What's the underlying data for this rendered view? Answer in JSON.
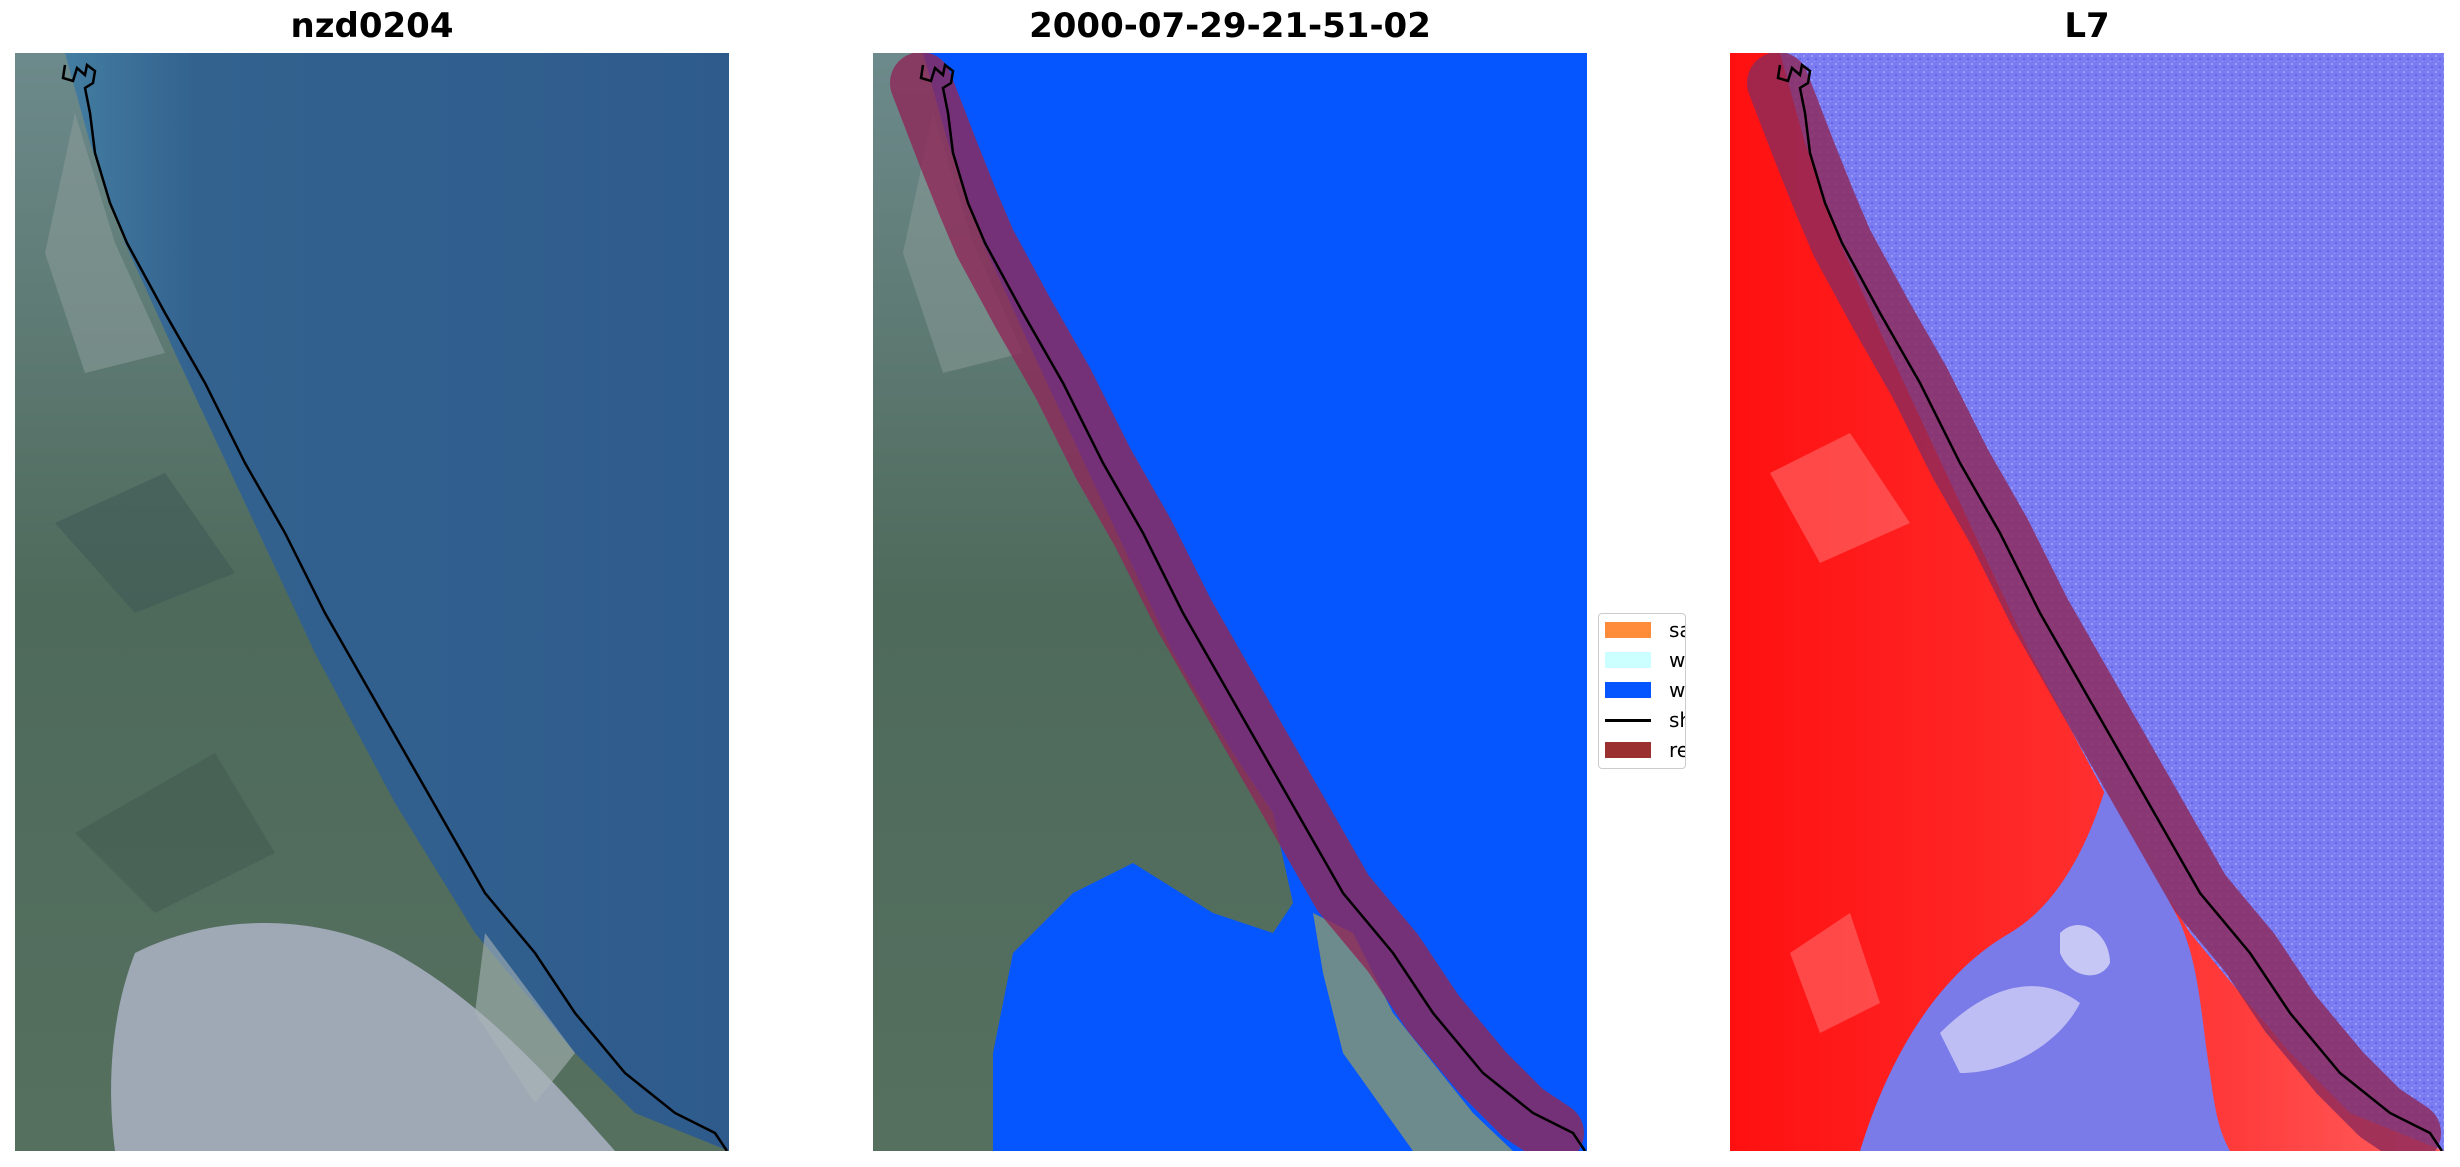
{
  "panels": [
    {
      "title": "nzd0204",
      "kind": "rgb"
    },
    {
      "title": "2000-07-29-21-51-02",
      "kind": "classified"
    },
    {
      "title": "L7",
      "kind": "index"
    }
  ],
  "legend": {
    "items": [
      {
        "label": "sand",
        "color": "#ff8c3a",
        "type": "patch"
      },
      {
        "label": "whitew",
        "color": "#ccffff",
        "type": "patch"
      },
      {
        "label": "water",
        "color": "#0556ff",
        "type": "patch"
      },
      {
        "label": "shorel",
        "color": "#000000",
        "type": "line"
      },
      {
        "label": "referen",
        "color": "#9b3030",
        "type": "patch"
      }
    ]
  },
  "colors": {
    "ocean": "#2f5f91",
    "land_green": "#4f6f5e",
    "estuary": "#9aa5b4",
    "water_class": "#0556ff",
    "reference_buffer": "#8e2a59",
    "index_land": "#ff1a1a",
    "index_water": "#7b7bf2"
  }
}
